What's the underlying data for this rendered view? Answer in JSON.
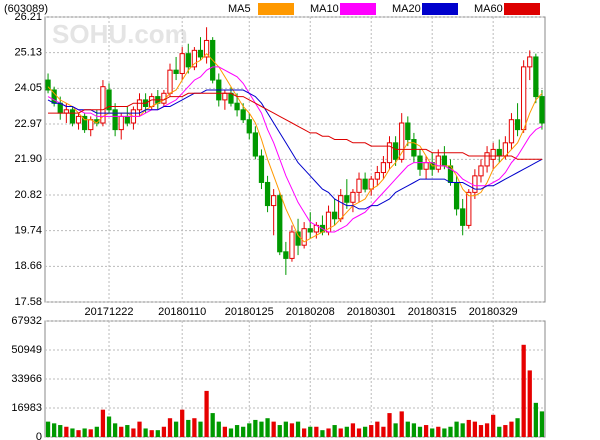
{
  "chart_data": [
    {
      "type": "candlestick",
      "title": "(603089)",
      "watermark": "SOHU.com",
      "categories": [
        null,
        null,
        null,
        null,
        null,
        null,
        null,
        null,
        null,
        null,
        "20171222",
        null,
        null,
        null,
        null,
        null,
        null,
        null,
        null,
        null,
        null,
        null,
        "20180110",
        null,
        null,
        null,
        null,
        null,
        null,
        null,
        null,
        null,
        null,
        "20180125",
        null,
        null,
        null,
        null,
        null,
        null,
        null,
        null,
        null,
        "20180208",
        null,
        null,
        null,
        null,
        null,
        null,
        null,
        null,
        null,
        "20180301",
        null,
        null,
        null,
        null,
        null,
        null,
        null,
        null,
        null,
        "20180315",
        null,
        null,
        null,
        null,
        null,
        null,
        null,
        null,
        null,
        "20180329",
        null,
        null,
        null,
        null,
        null,
        null,
        null,
        null
      ],
      "open": [
        24.3,
        24.0,
        23.6,
        23.3,
        23.4,
        23.0,
        23.2,
        22.8,
        23.1,
        23.0,
        24.0,
        23.4,
        22.8,
        23.2,
        23.0,
        23.4,
        23.7,
        23.5,
        23.8,
        23.6,
        23.9,
        24.6,
        24.5,
        25.1,
        24.7,
        25.2,
        25.0,
        25.5,
        24.3,
        23.7,
        23.9,
        23.6,
        23.4,
        23.1,
        22.7,
        22.0,
        21.2,
        20.5,
        20.8,
        19.1,
        18.9,
        19.7,
        19.3,
        19.8,
        19.7,
        19.9,
        19.7,
        20.3,
        20.1,
        20.8,
        20.6,
        20.9,
        21.3,
        21.0,
        21.3,
        21.5,
        21.8,
        22.4,
        21.9,
        23.0,
        22.5,
        22.0,
        21.6,
        21.8,
        21.6,
        22.0,
        21.7,
        21.2,
        20.4,
        19.9,
        20.9,
        21.4,
        21.7,
        21.9,
        22.2,
        22.0,
        22.4,
        23.1,
        22.8,
        24.7,
        25.0,
        23.8
      ],
      "high": [
        24.5,
        24.1,
        23.8,
        23.6,
        23.5,
        23.3,
        23.3,
        23.2,
        23.4,
        24.3,
        24.2,
        23.6,
        23.3,
        23.5,
        23.5,
        23.9,
        23.9,
        23.9,
        24.0,
        24.0,
        24.8,
        25.0,
        25.3,
        25.4,
        25.3,
        25.6,
        25.9,
        25.6,
        24.5,
        24.0,
        24.1,
        23.9,
        23.6,
        23.3,
        22.9,
        22.2,
        21.4,
        21.0,
        20.9,
        19.4,
        19.9,
        20.1,
        20.0,
        20.3,
        20.0,
        20.2,
        20.5,
        20.7,
        21.0,
        21.3,
        21.0,
        21.5,
        21.5,
        21.4,
        21.7,
        22.0,
        22.6,
        22.6,
        23.3,
        23.2,
        22.7,
        22.2,
        22.0,
        22.1,
        22.2,
        22.3,
        21.9,
        21.4,
        20.7,
        21.0,
        21.6,
        21.9,
        22.3,
        22.4,
        22.5,
        22.6,
        23.3,
        23.6,
        24.9,
        25.2,
        25.1,
        24.0
      ],
      "low": [
        23.9,
        23.5,
        23.1,
        23.0,
        22.9,
        22.8,
        22.7,
        22.6,
        22.9,
        22.9,
        23.3,
        22.6,
        22.5,
        22.9,
        22.8,
        23.2,
        23.3,
        23.4,
        23.4,
        23.5,
        23.8,
        24.3,
        24.3,
        24.5,
        24.6,
        24.9,
        24.8,
        24.2,
        23.5,
        23.4,
        23.5,
        23.2,
        23.0,
        22.5,
        21.9,
        21.0,
        20.3,
        19.6,
        19.0,
        18.4,
        18.8,
        19.0,
        19.2,
        19.5,
        19.5,
        19.6,
        19.6,
        19.9,
        20.0,
        20.4,
        20.3,
        20.6,
        20.9,
        20.8,
        21.1,
        21.3,
        21.6,
        21.7,
        21.8,
        22.3,
        21.8,
        21.4,
        21.3,
        21.4,
        21.5,
        21.6,
        21.1,
        20.2,
        19.6,
        19.8,
        20.7,
        21.2,
        21.5,
        21.6,
        21.8,
        21.9,
        22.2,
        22.6,
        22.7,
        24.3,
        23.6,
        22.8
      ],
      "close": [
        24.0,
        23.6,
        23.3,
        23.4,
        23.0,
        23.2,
        22.8,
        23.1,
        23.0,
        24.1,
        23.4,
        22.8,
        23.2,
        23.0,
        23.4,
        23.7,
        23.5,
        23.8,
        23.6,
        23.9,
        24.6,
        24.5,
        25.1,
        24.7,
        25.2,
        25.0,
        25.5,
        24.3,
        23.7,
        23.9,
        23.6,
        23.4,
        23.1,
        22.7,
        22.0,
        21.2,
        20.5,
        20.8,
        19.1,
        18.9,
        19.7,
        19.3,
        19.8,
        19.7,
        19.9,
        19.7,
        20.3,
        20.1,
        20.8,
        20.6,
        20.9,
        21.3,
        21.0,
        21.3,
        21.5,
        21.8,
        22.4,
        21.9,
        23.0,
        22.5,
        22.0,
        21.6,
        21.8,
        21.6,
        22.0,
        21.7,
        21.2,
        20.4,
        19.9,
        20.9,
        21.4,
        21.7,
        22.1,
        22.2,
        22.0,
        22.4,
        23.1,
        22.8,
        24.7,
        25.0,
        23.8,
        23.0
      ],
      "up_color": "#e60000",
      "down_color": "#009900",
      "series": [
        {
          "name": "MA5",
          "color": "#ff9900",
          "values": [
            24.1,
            23.9,
            23.7,
            23.6,
            23.5,
            23.3,
            23.1,
            23.1,
            23.0,
            23.2,
            23.3,
            23.3,
            23.3,
            23.3,
            23.2,
            23.2,
            23.4,
            23.5,
            23.6,
            23.7,
            23.9,
            24.0,
            24.3,
            24.6,
            24.8,
            24.9,
            25.1,
            24.9,
            24.7,
            24.4,
            24.1,
            23.8,
            23.5,
            23.3,
            23.0,
            22.5,
            21.9,
            21.4,
            20.9,
            20.4,
            20.0,
            19.6,
            19.4,
            19.5,
            19.6,
            19.7,
            19.8,
            19.9,
            20.1,
            20.3,
            20.5,
            20.6,
            20.7,
            21.0,
            21.1,
            21.3,
            21.6,
            21.8,
            22.1,
            22.4,
            22.4,
            22.3,
            22.0,
            21.7,
            21.7,
            21.7,
            21.7,
            21.4,
            21.0,
            20.8,
            20.8,
            20.9,
            21.2,
            21.6,
            21.8,
            22.0,
            22.2,
            22.4,
            22.8,
            23.3,
            23.7,
            23.9
          ]
        },
        {
          "name": "MA10",
          "color": "#ff00ff",
          "values": [
            23.8,
            23.7,
            23.6,
            23.5,
            23.5,
            23.4,
            23.3,
            23.3,
            23.2,
            23.2,
            23.2,
            23.2,
            23.2,
            23.2,
            23.2,
            23.2,
            23.3,
            23.4,
            23.4,
            23.5,
            23.6,
            23.7,
            23.9,
            24.1,
            24.3,
            24.4,
            24.6,
            24.7,
            24.7,
            24.6,
            24.5,
            24.4,
            24.2,
            23.9,
            23.6,
            23.3,
            22.8,
            22.4,
            21.9,
            21.4,
            21.0,
            20.6,
            20.3,
            20.0,
            19.9,
            19.8,
            19.7,
            19.7,
            19.8,
            19.9,
            20.1,
            20.2,
            20.3,
            20.5,
            20.7,
            20.9,
            21.1,
            21.3,
            21.5,
            21.7,
            21.8,
            21.8,
            21.8,
            21.8,
            21.7,
            21.7,
            21.6,
            21.5,
            21.3,
            21.2,
            21.1,
            21.1,
            21.1,
            21.2,
            21.3,
            21.5,
            21.8,
            22.0,
            22.3,
            22.6,
            22.8,
            22.9
          ]
        },
        {
          "name": "MA20",
          "color": "#0000cc",
          "values": [
            23.7,
            23.6,
            23.6,
            23.5,
            23.5,
            23.4,
            23.4,
            23.4,
            23.3,
            23.3,
            23.3,
            23.3,
            23.3,
            23.3,
            23.3,
            23.3,
            23.4,
            23.4,
            23.4,
            23.5,
            23.5,
            23.6,
            23.7,
            23.8,
            23.9,
            23.9,
            24.0,
            24.0,
            24.0,
            24.0,
            24.0,
            24.0,
            24.0,
            23.9,
            23.8,
            23.6,
            23.3,
            23.0,
            22.7,
            22.4,
            22.1,
            21.8,
            21.6,
            21.4,
            21.2,
            21.0,
            20.9,
            20.7,
            20.6,
            20.5,
            20.5,
            20.4,
            20.4,
            20.5,
            20.5,
            20.6,
            20.7,
            20.9,
            21.0,
            21.1,
            21.2,
            21.3,
            21.3,
            21.3,
            21.3,
            21.3,
            21.2,
            21.2,
            21.2,
            21.1,
            21.0,
            21.0,
            21.1,
            21.1,
            21.2,
            21.3,
            21.4,
            21.5,
            21.6,
            21.7,
            21.8,
            21.9
          ]
        },
        {
          "name": "MA60",
          "color": "#dd0000",
          "values": [
            23.3,
            23.3,
            23.3,
            23.3,
            23.3,
            23.3,
            23.4,
            23.4,
            23.4,
            23.4,
            23.5,
            23.5,
            23.5,
            23.5,
            23.6,
            23.6,
            23.6,
            23.7,
            23.7,
            23.7,
            23.8,
            23.8,
            23.8,
            23.9,
            23.9,
            23.9,
            23.9,
            23.9,
            23.9,
            23.9,
            23.9,
            23.8,
            23.8,
            23.7,
            23.6,
            23.5,
            23.4,
            23.3,
            23.2,
            23.1,
            23.0,
            22.9,
            22.8,
            22.7,
            22.7,
            22.6,
            22.6,
            22.5,
            22.5,
            22.5,
            22.4,
            22.4,
            22.4,
            22.3,
            22.3,
            22.3,
            22.3,
            22.2,
            22.2,
            22.2,
            22.2,
            22.2,
            22.2,
            22.1,
            22.1,
            22.1,
            22.1,
            22.1,
            22.1,
            22.0,
            22.0,
            22.0,
            22.0,
            22.0,
            22.0,
            22.0,
            22.0,
            21.9,
            21.9,
            21.9,
            21.9,
            21.9
          ]
        }
      ],
      "ylim": [
        17.58,
        26.21
      ],
      "yticks": [
        17.58,
        18.66,
        19.74,
        20.82,
        {
          "value": 21.9,
          "label": "21.90"
        },
        22.97,
        24.05,
        25.13,
        26.21
      ],
      "grid": true
    },
    {
      "type": "bar",
      "values": [
        9000,
        8000,
        7000,
        6000,
        5000,
        4000,
        5000,
        4500,
        6000,
        16000,
        12000,
        8000,
        6000,
        7000,
        5000,
        9000,
        5000,
        4000,
        4000,
        6000,
        11000,
        9000,
        16000,
        10000,
        11000,
        9000,
        27000,
        14000,
        9000,
        6000,
        5000,
        7000,
        6000,
        8000,
        10000,
        9000,
        11000,
        9000,
        7000,
        9000,
        8000,
        9000,
        5000,
        6000,
        6000,
        4000,
        5000,
        7000,
        5000,
        6000,
        8000,
        5000,
        6000,
        7000,
        9000,
        6000,
        14000,
        8000,
        15000,
        9000,
        8000,
        6000,
        7000,
        5000,
        6000,
        5000,
        6000,
        9000,
        8000,
        10000,
        9000,
        7000,
        8000,
        13000,
        6000,
        7000,
        9000,
        11000,
        54000,
        39000,
        20000,
        15000
      ],
      "ylim": [
        0,
        67932
      ],
      "yticks": [
        0,
        16983,
        33966,
        50949,
        67932
      ],
      "grid": true
    }
  ]
}
